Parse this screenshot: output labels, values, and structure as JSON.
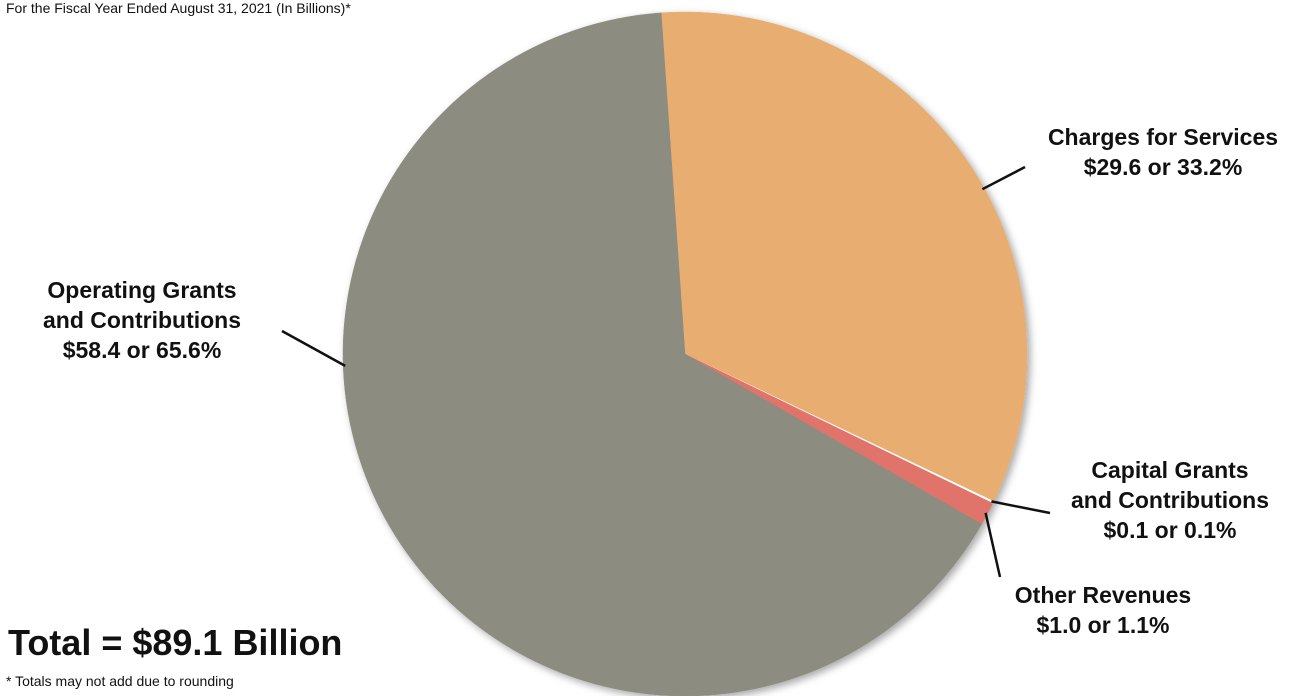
{
  "chart_data": {
    "type": "pie",
    "subtitle": "For the Fiscal Year Ended August 31, 2021 (In Billions)*",
    "total_label": "Total = $89.1 Billion",
    "footnote": "* Totals may not add due to rounding",
    "start_angle_deg": -4,
    "slices": [
      {
        "name": "Charges for Services",
        "name_lines": [
          "Charges for Services"
        ],
        "value": 29.6,
        "percent": 33.2,
        "value_text": "$29.6  or  33.2%",
        "color": "#e8ad70"
      },
      {
        "name": "Capital Grants and Contributions",
        "name_lines": [
          "Capital Grants",
          "and Contributions"
        ],
        "value": 0.1,
        "percent": 0.1,
        "value_text": "$0.1  or  0.1%",
        "color": "#ffffff"
      },
      {
        "name": "Other Revenues",
        "name_lines": [
          "Other Revenues"
        ],
        "value": 1.0,
        "percent": 1.1,
        "value_text": "$1.0  or  1.1%",
        "color": "#e0736a"
      },
      {
        "name": "Operating Grants and Contributions",
        "name_lines": [
          "Operating Grants",
          "and Contributions"
        ],
        "value": 58.4,
        "percent": 65.6,
        "value_text": "$58.4  or  65.6%",
        "color": "#8c8d80"
      }
    ]
  }
}
